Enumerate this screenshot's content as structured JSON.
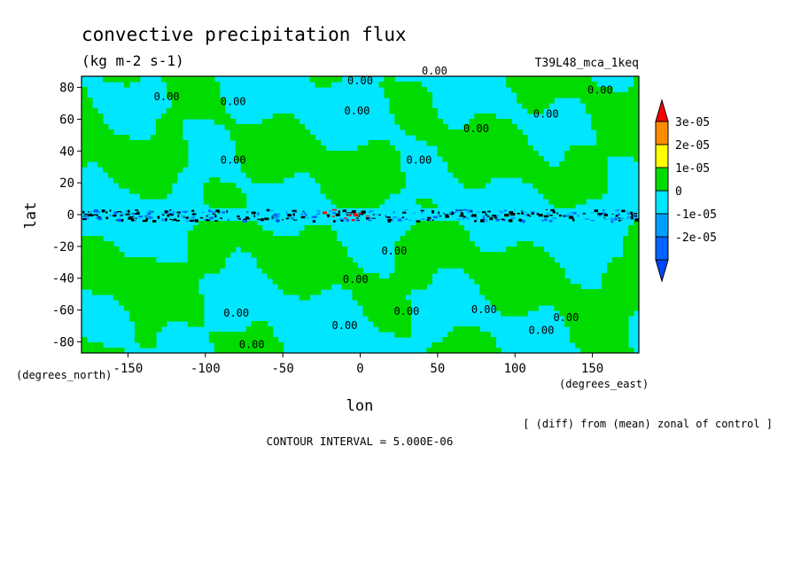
{
  "chart_data": {
    "type": "heatmap",
    "title": "convective precipitation flux",
    "units": "(kg m-2 s-1)",
    "run_label": "T39L48_mca_1keq",
    "xlabel": "lon",
    "ylabel": "lat",
    "x_units": "(degrees_east)",
    "y_units": "(degrees_north)",
    "xlim": [
      -180,
      180
    ],
    "ylim": [
      -87,
      87
    ],
    "x_ticks": [
      -150,
      -100,
      -50,
      0,
      50,
      100,
      150
    ],
    "y_ticks": [
      -80,
      -60,
      -40,
      -20,
      0,
      20,
      40,
      60,
      80
    ],
    "x_tick_labels": [
      "-150",
      "-100",
      "-50",
      "0",
      "50",
      "100",
      "150"
    ],
    "y_tick_labels": [
      "-80",
      "-60",
      "-40",
      "-20",
      "0",
      "20",
      "40",
      "60",
      "80"
    ],
    "legend": {
      "position": "right",
      "levels": [
        {
          "label": "3e-05",
          "value": 3e-05,
          "color": "#ff8c00"
        },
        {
          "label": "2e-05",
          "value": 2e-05,
          "color": "#ffff00"
        },
        {
          "label": "1e-05",
          "value": 1e-05,
          "color": "#00dc00"
        },
        {
          "label": "0",
          "value": 0,
          "color": "#00e6ff"
        },
        {
          "label": "-1e-05",
          "value": -1e-05,
          "color": "#00a0ff"
        },
        {
          "label": "-2e-05",
          "value": -2e-05,
          "color": "#0064ff"
        }
      ],
      "top_color": "#ff0000",
      "bottom_color": "#0046ff"
    },
    "contour_labels": [
      "0.00",
      "0.00",
      "0.00",
      "0.00",
      "0.00",
      "0.00",
      "0.00",
      "0.00",
      "0.00",
      "0.00",
      "0.00",
      "0.00",
      "0.00",
      "0.00",
      "0.00",
      "0.00",
      "0.00",
      "0.00",
      "0.00"
    ],
    "footnote": "[ (diff) from (mean) zonal of control ]",
    "contour_interval": "CONTOUR INTERVAL = 5.000E-06"
  }
}
